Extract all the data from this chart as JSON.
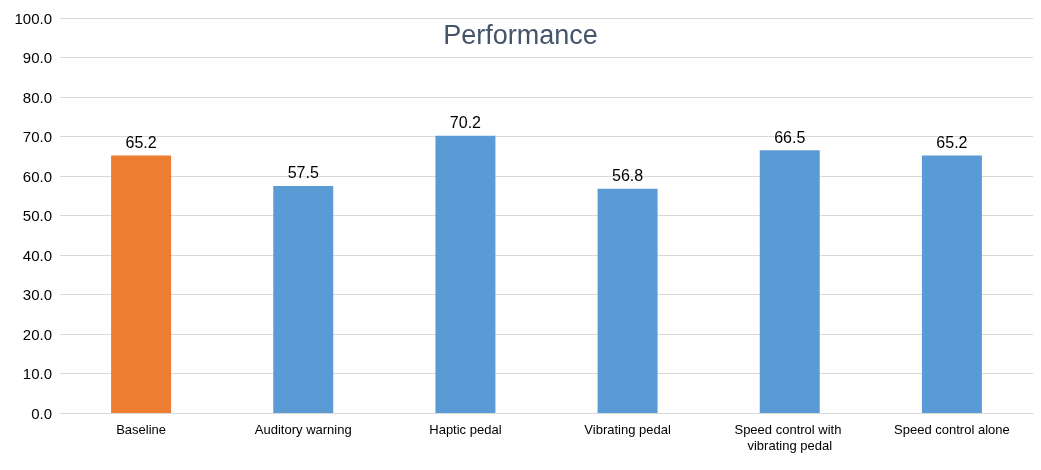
{
  "chart_data": {
    "type": "bar",
    "title": "Performance",
    "categories": [
      "Baseline",
      "Auditory warning",
      "Haptic pedal",
      "Vibrating pedal",
      "Speed control with vibrating pedal",
      "Speed control alone"
    ],
    "values": [
      65.2,
      57.5,
      70.2,
      56.8,
      66.5,
      65.2
    ],
    "colors": [
      "#ed7d31",
      "#5b9bd5",
      "#5b9bd5",
      "#5b9bd5",
      "#5b9bd5",
      "#5b9bd5"
    ],
    "ylim": [
      0,
      100
    ],
    "yticks": [
      {
        "value": 0,
        "label": "0.0"
      },
      {
        "value": 10,
        "label": "10.0"
      },
      {
        "value": 20,
        "label": "20.0"
      },
      {
        "value": 30,
        "label": "30.0"
      },
      {
        "value": 40,
        "label": "40.0"
      },
      {
        "value": 50,
        "label": "50.0"
      },
      {
        "value": 60,
        "label": "60.0"
      },
      {
        "value": 70,
        "label": "70.0"
      },
      {
        "value": 80,
        "label": "80.0"
      },
      {
        "value": 90,
        "label": "90.0"
      },
      {
        "value": 100,
        "label": "100.0"
      }
    ],
    "grid": true,
    "data_labels": true
  }
}
